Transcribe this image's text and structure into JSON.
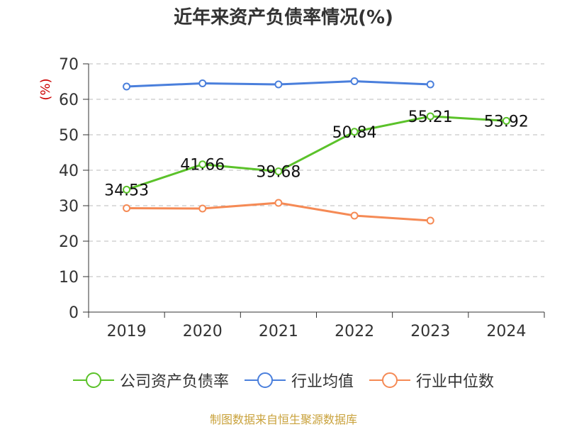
{
  "title": "近年来资产负债率情况(%)",
  "source": "制图数据来自恒生聚源数据库",
  "colors": {
    "company": "#5bc22a",
    "industry_avg": "#4a7fdc",
    "industry_median": "#f58a55",
    "axis": "#333333",
    "grid": "#bbbbbb",
    "unit_label": "#cc0000",
    "source_text": "#c9a23c"
  },
  "chart_data": {
    "type": "line",
    "title": "近年来资产负债率情况(%)",
    "ylabel": "(%)",
    "xlabel": "",
    "ylim": [
      0,
      70
    ],
    "yticks": [
      0,
      10,
      20,
      30,
      40,
      50,
      60,
      70
    ],
    "categories": [
      "2019",
      "2020",
      "2021",
      "2022",
      "2023",
      "2024"
    ],
    "grid": true,
    "legend_position": "bottom",
    "series": [
      {
        "name": "公司资产负债率",
        "color": "#5bc22a",
        "values": [
          34.53,
          41.66,
          39.68,
          50.84,
          55.21,
          53.92
        ],
        "labels": [
          "34.53",
          "41.66",
          "39.68",
          "50.84",
          "55.21",
          "53.92"
        ]
      },
      {
        "name": "行业均值",
        "color": "#4a7fdc",
        "values": [
          63.6,
          64.5,
          64.2,
          65.1,
          64.2,
          null
        ]
      },
      {
        "name": "行业中位数",
        "color": "#f58a55",
        "values": [
          29.3,
          29.2,
          30.8,
          27.2,
          25.8,
          null
        ]
      }
    ]
  }
}
